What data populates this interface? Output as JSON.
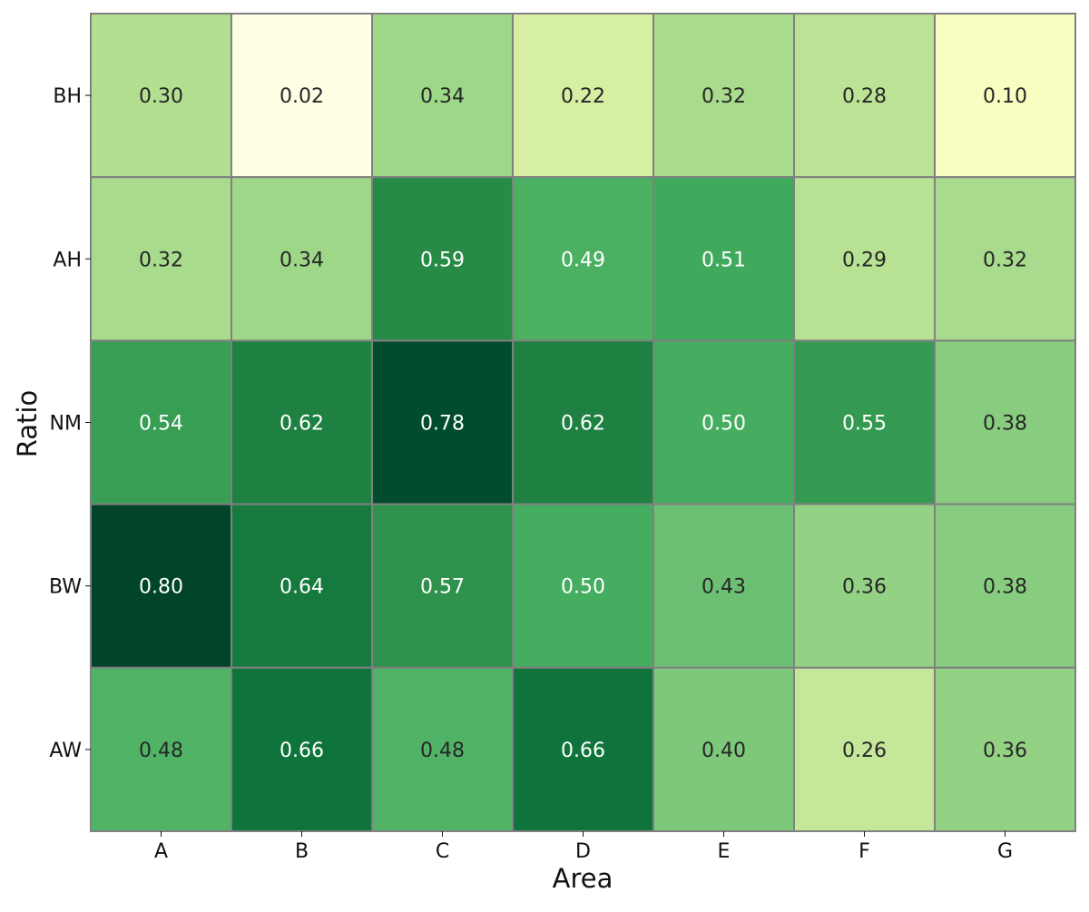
{
  "chart_data": {
    "type": "heatmap",
    "xlabel": "Area",
    "ylabel": "Ratio",
    "x_categories": [
      "A",
      "B",
      "C",
      "D",
      "E",
      "F",
      "G"
    ],
    "y_categories": [
      "BH",
      "AH",
      "NM",
      "BW",
      "AW"
    ],
    "values": [
      [
        0.3,
        0.02,
        0.34,
        0.22,
        0.32,
        0.28,
        0.1
      ],
      [
        0.32,
        0.34,
        0.59,
        0.49,
        0.51,
        0.29,
        0.32
      ],
      [
        0.54,
        0.62,
        0.78,
        0.62,
        0.5,
        0.55,
        0.38
      ],
      [
        0.8,
        0.64,
        0.57,
        0.5,
        0.43,
        0.36,
        0.38
      ],
      [
        0.48,
        0.66,
        0.48,
        0.66,
        0.4,
        0.26,
        0.36
      ]
    ],
    "value_format": "0.00",
    "colormap": "YlGn",
    "color_range": [
      0.02,
      0.8
    ],
    "colors": {
      "cell_border": "#808080",
      "dark_text": "#262626",
      "light_text": "#ffffff"
    }
  }
}
